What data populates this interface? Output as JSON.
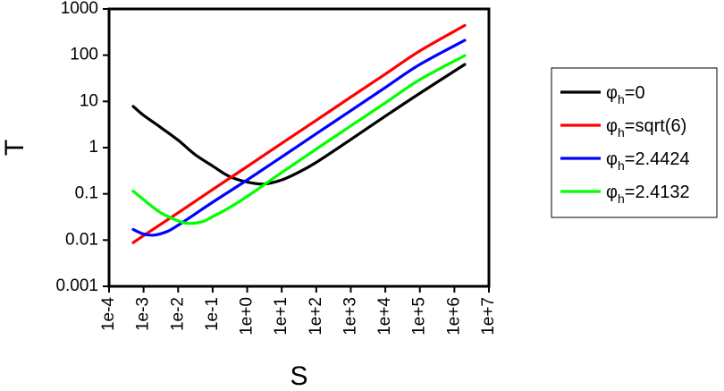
{
  "chart_data": {
    "type": "line",
    "title": "",
    "xlabel": "S",
    "ylabel": "T",
    "x_scale": "log",
    "y_scale": "log",
    "xlim": [
      0.0001,
      10000000
    ],
    "ylim": [
      0.001,
      1000
    ],
    "x_ticks": [
      0.0001,
      0.001,
      0.01,
      0.1,
      1,
      10,
      100,
      1000,
      10000,
      100000,
      1000000,
      10000000
    ],
    "x_tick_labels": [
      "1e-4",
      "1e-3",
      "1e-2",
      "1e-1",
      "1e+0",
      "1e+1",
      "1e+2",
      "1e+3",
      "1e+4",
      "1e+5",
      "1e+6",
      "1e+7"
    ],
    "y_ticks": [
      0.001,
      0.01,
      0.1,
      1,
      10,
      100,
      1000
    ],
    "y_tick_labels": [
      "0.001",
      "0.01",
      "0.1",
      "1",
      "10",
      "100",
      "1000"
    ],
    "grid": false,
    "legend_position": "right",
    "series": [
      {
        "name": "φh=0",
        "legend_base": "φ",
        "legend_sub": "h",
        "legend_rest": "=0",
        "color": "#000000",
        "x": [
          0.0005,
          0.001,
          0.003,
          0.01,
          0.03,
          0.1,
          0.3,
          1,
          3,
          10,
          30,
          100,
          1000,
          10000,
          100000,
          2000000
        ],
        "y": [
          7.8,
          5.0,
          2.8,
          1.45,
          0.72,
          0.4,
          0.24,
          0.18,
          0.163,
          0.2,
          0.29,
          0.48,
          1.5,
          4.8,
          15,
          63
        ]
      },
      {
        "name": "φh=sqrt(6)",
        "legend_base": "φ",
        "legend_sub": "h",
        "legend_rest": "=sqrt(6)",
        "color": "#ff0000",
        "x": [
          0.0005,
          0.001,
          0.01,
          0.1,
          1,
          10,
          100,
          1000,
          10000,
          100000,
          2000000
        ],
        "y": [
          0.0088,
          0.0125,
          0.039,
          0.124,
          0.39,
          1.24,
          3.9,
          12.4,
          39,
          124,
          440
        ]
      },
      {
        "name": "φh=2.4424",
        "legend_base": "φ",
        "legend_sub": "h",
        "legend_rest": "=2.4424",
        "color": "#0000ff",
        "x": [
          0.0005,
          0.001,
          0.002,
          0.005,
          0.01,
          0.03,
          0.1,
          1,
          10,
          100,
          1000,
          10000,
          100000,
          2000000
        ],
        "y": [
          0.017,
          0.0135,
          0.0128,
          0.0155,
          0.021,
          0.036,
          0.066,
          0.2,
          0.63,
          2.0,
          6.3,
          20,
          63,
          210
        ]
      },
      {
        "name": "φh=2.4132",
        "legend_base": "φ",
        "legend_sub": "h",
        "legend_rest": "=2.4132",
        "color": "#00ff00",
        "x": [
          0.0005,
          0.001,
          0.003,
          0.01,
          0.02,
          0.05,
          0.1,
          0.3,
          1,
          10,
          100,
          1000,
          10000,
          100000,
          2000000
        ],
        "y": [
          0.115,
          0.075,
          0.04,
          0.026,
          0.023,
          0.025,
          0.032,
          0.05,
          0.088,
          0.29,
          0.93,
          2.95,
          9.3,
          29.5,
          98
        ]
      }
    ]
  }
}
